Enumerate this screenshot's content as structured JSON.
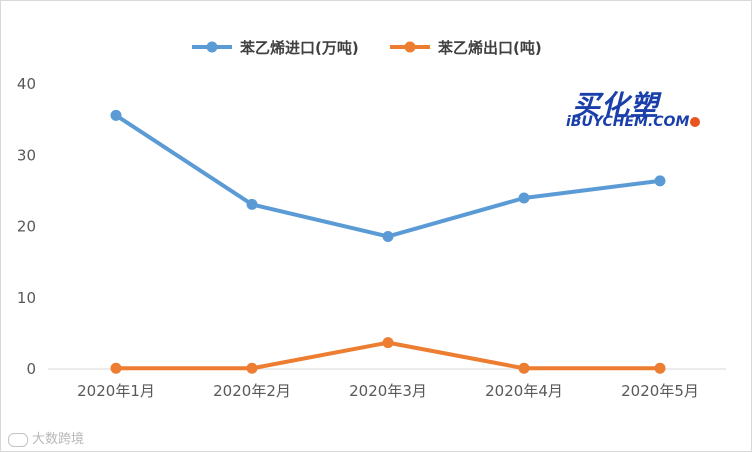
{
  "chart_data": {
    "type": "line",
    "categories": [
      "2020年1月",
      "2020年2月",
      "2020年3月",
      "2020年4月",
      "2020年5月"
    ],
    "series": [
      {
        "name": "苯乙烯进口(万吨)",
        "color": "#5b9bd5",
        "values": [
          35.6,
          23.1,
          18.6,
          24.0,
          26.4
        ]
      },
      {
        "name": "苯乙烯出口(吨)",
        "color": "#ed7d31",
        "values": [
          0.1,
          0.1,
          3.7,
          0.1,
          0.1
        ]
      }
    ],
    "yticks": [
      "0",
      "10",
      "20",
      "30",
      "40"
    ],
    "ylim": [
      0,
      40
    ],
    "grid": false,
    "legend_position": "top"
  },
  "logo": {
    "cn": "买化塑",
    "en": "iBUYCHEM.COM"
  },
  "watermark": "大数跨境"
}
